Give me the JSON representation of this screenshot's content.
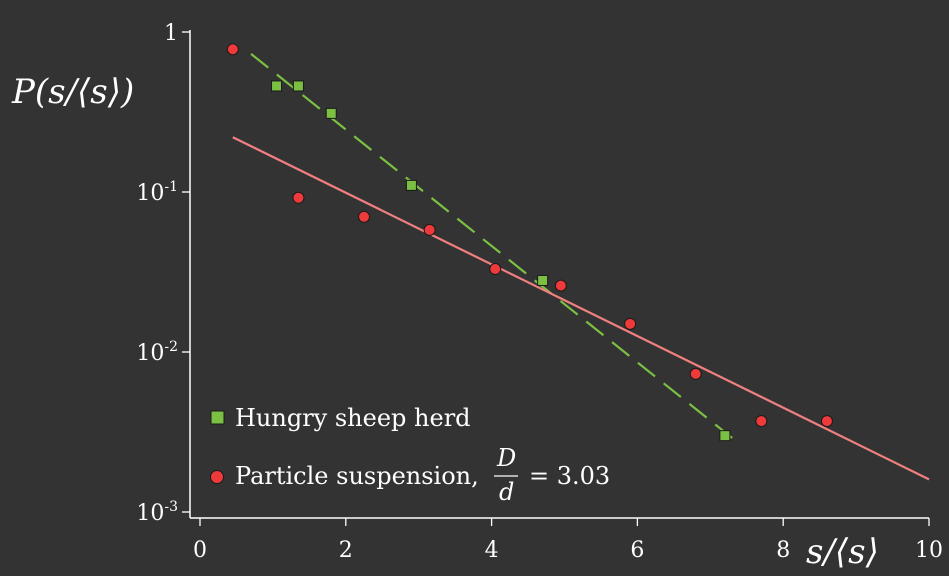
{
  "chart_data": {
    "type": "scatter",
    "xlabel": "s/⟨s⟩",
    "ylabel": "P(s/⟨s⟩)",
    "xlim": [
      0,
      10
    ],
    "ylim": [
      0.001,
      1
    ],
    "y_scale": "log",
    "grid": false,
    "legend_position": "bottom-left",
    "x_ticks": [
      {
        "value": 0,
        "label": "0"
      },
      {
        "value": 2,
        "label": "2"
      },
      {
        "value": 4,
        "label": "4"
      },
      {
        "value": 6,
        "label": "6"
      },
      {
        "value": 8,
        "label": "8"
      },
      {
        "value": 10,
        "label": "10"
      }
    ],
    "y_ticks": [
      {
        "value": 1,
        "base": "1",
        "exp": ""
      },
      {
        "value": 0.1,
        "base": "10",
        "exp": "-1"
      },
      {
        "value": 0.01,
        "base": "10",
        "exp": "-2"
      },
      {
        "value": 0.001,
        "base": "10",
        "exp": "-3"
      }
    ],
    "series": [
      {
        "name": "Hungry sheep herd",
        "marker": "square",
        "color": "#7bc043",
        "x": [
          1.05,
          1.35,
          1.8,
          2.9,
          4.7,
          7.2
        ],
        "y": [
          0.46,
          0.46,
          0.31,
          0.11,
          0.028,
          0.003
        ]
      },
      {
        "name": "Particle suspension, D/d = 3.03",
        "marker": "circle",
        "color": "#ee3a3a",
        "x": [
          0.45,
          1.35,
          2.25,
          3.15,
          4.05,
          4.95,
          5.9,
          6.8,
          7.7,
          8.6
        ],
        "y": [
          0.78,
          0.092,
          0.07,
          0.058,
          0.033,
          0.026,
          0.015,
          0.0073,
          0.0037,
          0.0037
        ]
      }
    ],
    "fits": [
      {
        "style": "dashed",
        "color": "#7bc043",
        "x": [
          0.7,
          7.3
        ],
        "y": [
          0.73,
          0.0029
        ]
      },
      {
        "style": "solid",
        "color": "#f08080",
        "x": [
          0.45,
          10
        ],
        "y": [
          0.22,
          0.0016
        ]
      }
    ],
    "legend": {
      "entries": [
        {
          "text": "Hungry sheep herd"
        },
        {
          "prefix": "Particle suspension,",
          "num": "D",
          "den": "d",
          "suffix": "= 3.03"
        }
      ]
    }
  }
}
